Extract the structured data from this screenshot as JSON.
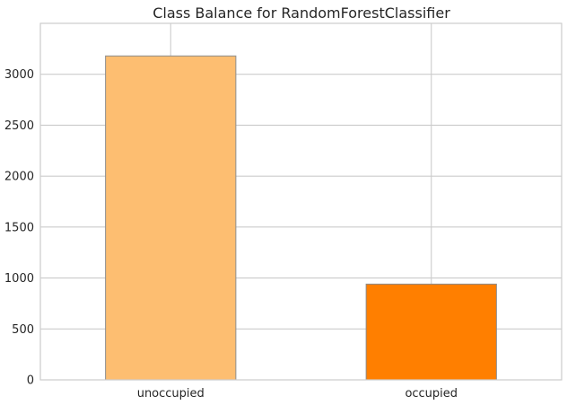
{
  "chart_data": {
    "type": "bar",
    "title": "Class Balance for RandomForestClassifier",
    "xlabel": "",
    "ylabel": "",
    "categories": [
      "unoccupied",
      "occupied"
    ],
    "values": [
      3180,
      940
    ],
    "colors": [
      "#fdbe71",
      "#ff7f00"
    ],
    "ylim": [
      0,
      3500
    ],
    "yticks": [
      0,
      500,
      1000,
      1500,
      2000,
      2500,
      3000
    ],
    "grid": true,
    "legend": "none"
  }
}
